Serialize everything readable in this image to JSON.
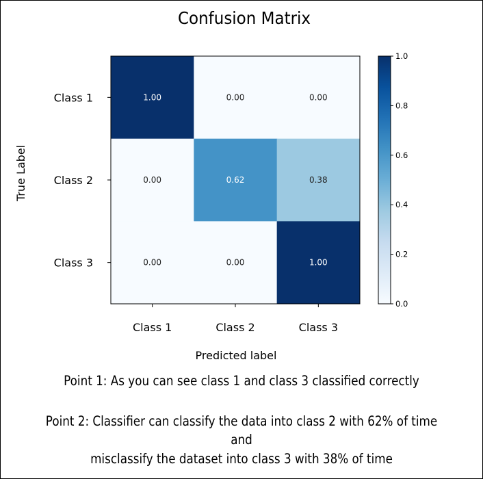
{
  "chart_data": {
    "type": "heatmap",
    "title": "Confusion Matrix",
    "xlabel": "Predicted label",
    "ylabel": "True Label",
    "x_categories": [
      "Class 1",
      "Class 2",
      "Class 3"
    ],
    "y_categories": [
      "Class 1",
      "Class 2",
      "Class 3"
    ],
    "values": [
      [
        1.0,
        0.0,
        0.0
      ],
      [
        0.0,
        0.62,
        0.38
      ],
      [
        0.0,
        0.0,
        1.0
      ]
    ],
    "value_labels": [
      [
        "1.00",
        "0.00",
        "0.00"
      ],
      [
        "0.00",
        "0.62",
        "0.38"
      ],
      [
        "0.00",
        "0.00",
        "1.00"
      ]
    ],
    "colormap": "Blues",
    "colorbar": {
      "range": [
        0.0,
        1.0
      ],
      "ticks": [
        "0.0",
        "0.2",
        "0.4",
        "0.6",
        "0.8",
        "1.0"
      ]
    },
    "colors": {
      "low": "#f7fbff",
      "mid": "#4292c6",
      "high": "#08306b"
    }
  },
  "annotations": {
    "point1": "Point 1: As you can see class 1 and class 3 classified correctly",
    "point2_line1": "Point 2: Classifier can classify the data into class 2 with 62% of time",
    "point2_line2": "and",
    "point2_line3": "misclassify the dataset into class 3  with 38% of time"
  }
}
